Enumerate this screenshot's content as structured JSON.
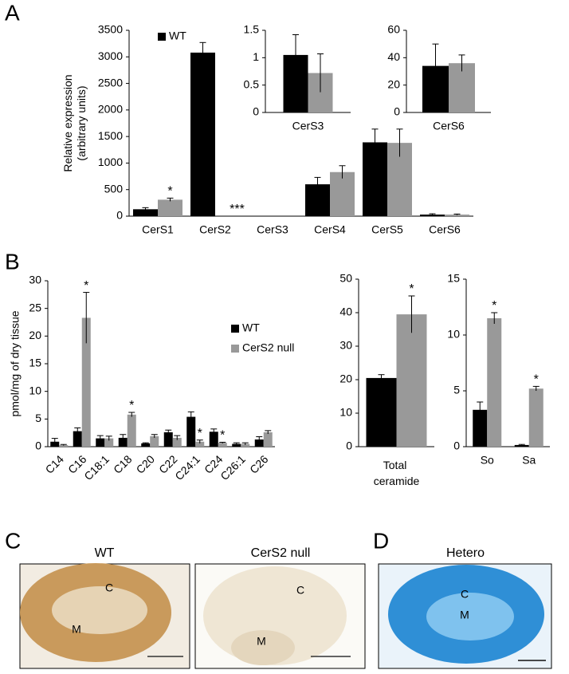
{
  "figure": {
    "panel_labels": [
      "A",
      "B",
      "C",
      "D"
    ],
    "micrographs": [
      {
        "title": "WT",
        "labels": [
          "C",
          "M"
        ]
      },
      {
        "title": "CerS2 null",
        "labels": [
          "C",
          "M"
        ]
      },
      {
        "title": "Hetero",
        "labels": [
          "C",
          "M"
        ]
      }
    ]
  },
  "chart_data": [
    {
      "type": "bar",
      "ylabel": [
        "Relative expression",
        "(arbitrary units)"
      ],
      "categories": [
        "CerS1",
        "CerS2",
        "CerS3",
        "CerS4",
        "CerS5",
        "CerS6"
      ],
      "series": [
        {
          "name": "WT",
          "color": "#000000",
          "values": [
            130,
            3080,
            0,
            600,
            1390,
            30
          ],
          "errors": [
            30,
            190,
            0,
            130,
            250,
            15
          ]
        },
        {
          "color": "#999999",
          "values": [
            310,
            0,
            0,
            830,
            1380,
            30
          ],
          "errors": [
            30,
            0,
            0,
            120,
            260,
            10
          ],
          "annotations": [
            "*",
            "***",
            null,
            null,
            null,
            null
          ]
        }
      ],
      "ylim": [
        0,
        3500
      ],
      "yticks": [
        0,
        500,
        1000,
        1500,
        2000,
        2500,
        3000,
        3500
      ]
    },
    {
      "type": "bar",
      "categories": [
        "CerS3"
      ],
      "series": [
        {
          "color": "#000000",
          "values": [
            1.05
          ],
          "errors": [
            0.37
          ]
        },
        {
          "color": "#999999",
          "values": [
            0.72
          ],
          "errors": [
            0.35
          ]
        }
      ],
      "ylim": [
        0,
        1.5
      ],
      "yticks": [
        0,
        0.5,
        1,
        1.5
      ]
    },
    {
      "type": "bar",
      "categories": [
        "CerS6"
      ],
      "series": [
        {
          "color": "#000000",
          "values": [
            34
          ],
          "errors": [
            16
          ]
        },
        {
          "color": "#999999",
          "values": [
            36
          ],
          "errors": [
            6
          ]
        }
      ],
      "ylim": [
        0,
        60
      ],
      "yticks": [
        0,
        20,
        40,
        60
      ]
    },
    {
      "type": "bar",
      "ylabel": [
        "pmol/mg of dry tissue"
      ],
      "categories": [
        "C14",
        "C16",
        "C18:1",
        "C18",
        "C20",
        "C22",
        "C24:1",
        "C24",
        "C26:1",
        "C26"
      ],
      "series": [
        {
          "name": "WT",
          "color": "#000000",
          "values": [
            0.9,
            2.8,
            1.5,
            1.6,
            0.6,
            2.6,
            5.4,
            2.7,
            0.5,
            1.3
          ],
          "errors": [
            0.6,
            0.6,
            0.5,
            0.6,
            0.1,
            0.4,
            0.9,
            0.5,
            0.2,
            0.5
          ]
        },
        {
          "name": "CerS2 null",
          "color": "#999999",
          "values": [
            0.3,
            23.3,
            1.5,
            5.8,
            1.9,
            1.6,
            0.9,
            0.7,
            0.5,
            2.6
          ],
          "errors": [
            0.1,
            4.6,
            0.4,
            0.4,
            0.3,
            0.4,
            0.3,
            0.1,
            0.2,
            0.3
          ],
          "annotations": [
            null,
            "*",
            null,
            "*",
            null,
            null,
            "*",
            "*",
            null,
            null
          ]
        }
      ],
      "ylim": [
        0,
        30
      ],
      "yticks": [
        0,
        5,
        10,
        15,
        20,
        25,
        30
      ]
    },
    {
      "type": "bar",
      "categories": [
        "Total ceramide"
      ],
      "series": [
        {
          "color": "#000000",
          "values": [
            20.5
          ],
          "errors": [
            1
          ]
        },
        {
          "color": "#999999",
          "values": [
            39.5
          ],
          "errors": [
            5.5
          ],
          "annotations": [
            "*"
          ]
        }
      ],
      "ylim": [
        0,
        50
      ],
      "yticks": [
        0,
        10,
        20,
        30,
        40,
        50
      ]
    },
    {
      "type": "bar",
      "categories": [
        "So",
        "Sa"
      ],
      "series": [
        {
          "color": "#000000",
          "values": [
            3.3,
            0.15
          ],
          "errors": [
            0.7,
            0.05
          ]
        },
        {
          "color": "#999999",
          "values": [
            11.5,
            5.2
          ],
          "errors": [
            0.5,
            0.2
          ],
          "annotations": [
            "*",
            "*"
          ]
        }
      ],
      "ylim": [
        0,
        15
      ],
      "yticks": [
        0,
        5,
        10,
        15
      ]
    }
  ]
}
